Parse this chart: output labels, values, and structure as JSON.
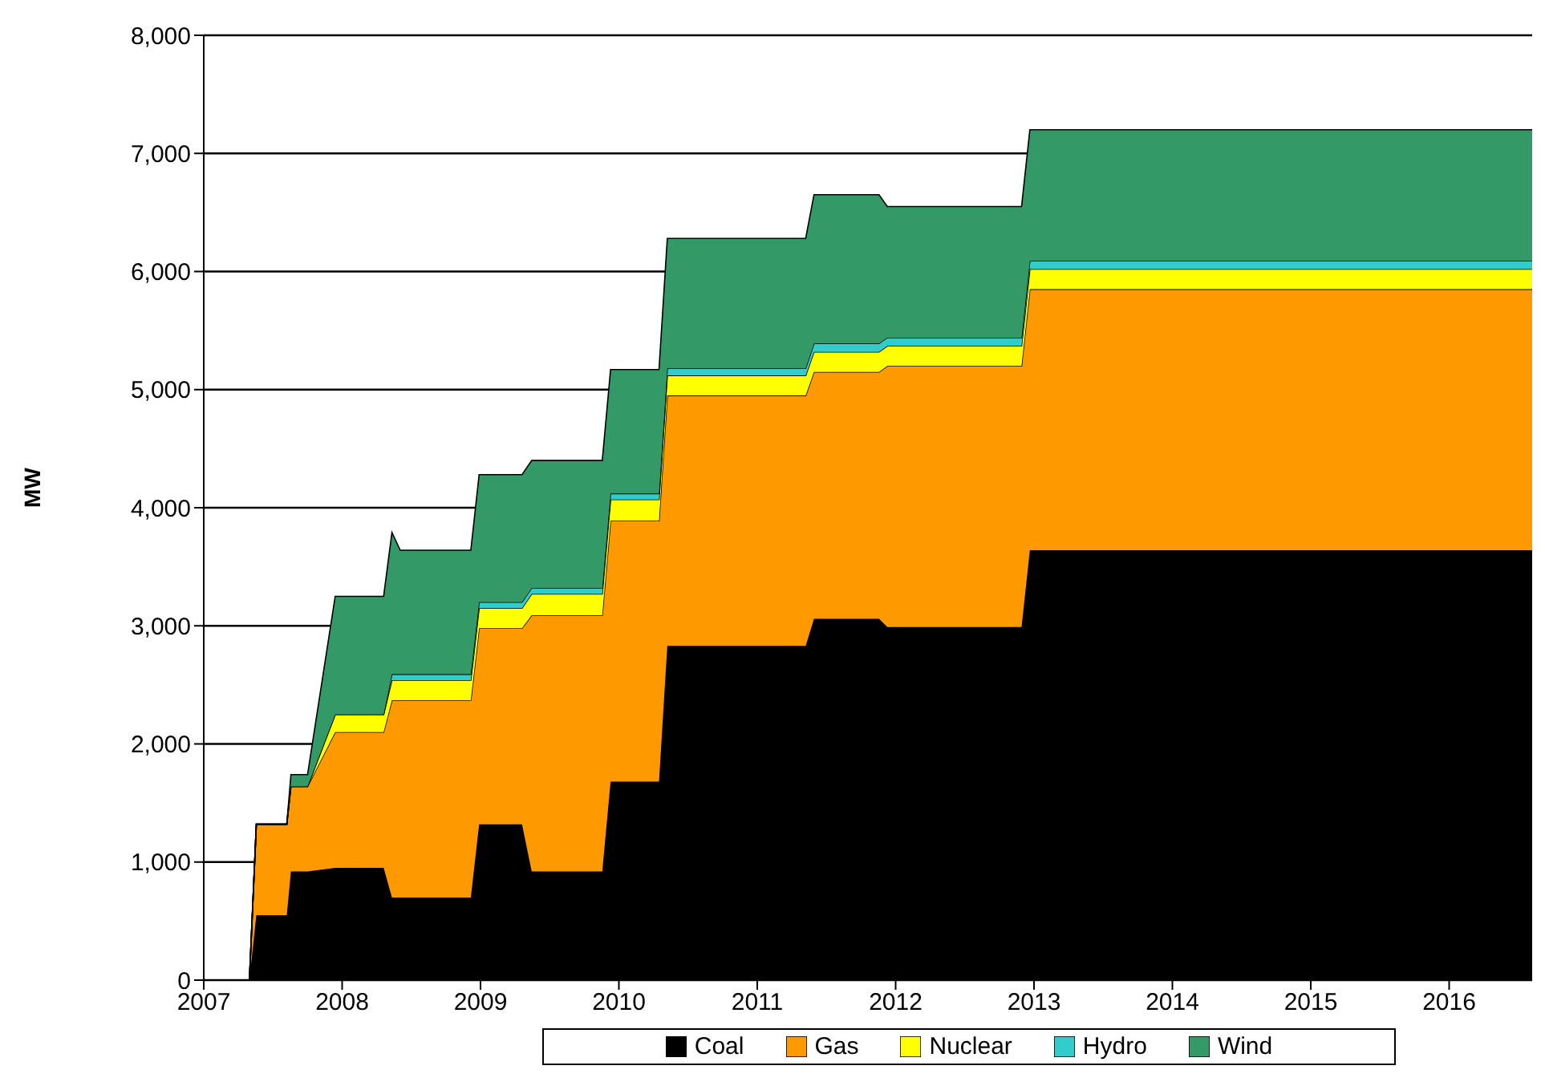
{
  "chart_data": {
    "type": "area",
    "stacked": true,
    "ylabel": "MW",
    "x": [
      2007,
      2007.33,
      2007.38,
      2007.6,
      2007.63,
      2007.75,
      2007.95,
      2008.3,
      2008.36,
      2008.42,
      2008.93,
      2008.99,
      2009.3,
      2009.37,
      2009.88,
      2009.94,
      2010.29,
      2010.35,
      2011.35,
      2011.41,
      2011.88,
      2011.94,
      2012.91,
      2012.97,
      2016.6
    ],
    "series": [
      {
        "name": "Coal",
        "color": "#000000",
        "values": [
          0,
          0,
          550,
          550,
          920,
          920,
          950,
          950,
          700,
          700,
          700,
          1320,
          1320,
          920,
          920,
          1680,
          1680,
          2830,
          2830,
          3060,
          3060,
          2990,
          2990,
          3640,
          3640
        ]
      },
      {
        "name": "Gas",
        "color": "#ff9900",
        "values": [
          0,
          0,
          770,
          770,
          720,
          720,
          1150,
          1150,
          1670,
          1670,
          1670,
          1660,
          1660,
          2170,
          2170,
          2210,
          2210,
          2120,
          2120,
          2090,
          2090,
          2210,
          2210,
          2210,
          2210
        ]
      },
      {
        "name": "Nuclear",
        "color": "#ffff00",
        "values": [
          0,
          0,
          0,
          0,
          0,
          0,
          150,
          150,
          170,
          170,
          170,
          170,
          170,
          180,
          180,
          180,
          180,
          170,
          170,
          170,
          170,
          170,
          170,
          170,
          170
        ]
      },
      {
        "name": "Hydro",
        "color": "#33cccc",
        "values": [
          0,
          0,
          0,
          0,
          0,
          0,
          0,
          0,
          50,
          50,
          50,
          50,
          50,
          50,
          50,
          50,
          50,
          60,
          60,
          70,
          70,
          70,
          70,
          70,
          70
        ]
      },
      {
        "name": "Wind",
        "color": "#339966",
        "values": [
          0,
          0,
          0,
          0,
          100,
          100,
          1000,
          1000,
          1200,
          1050,
          1050,
          1080,
          1080,
          1080,
          1080,
          1050,
          1050,
          1100,
          1100,
          1260,
          1260,
          1110,
          1110,
          1110,
          1110
        ]
      }
    ],
    "xlim": [
      2007,
      2016.6
    ],
    "xticks": [
      2007,
      2008,
      2009,
      2010,
      2011,
      2012,
      2013,
      2014,
      2015,
      2016
    ],
    "ylim": [
      0,
      8000
    ],
    "yticks": [
      0,
      {
        "value": 1000,
        "label": "1,000"
      },
      {
        "value": 2000,
        "label": "2,000"
      },
      {
        "value": 3000,
        "label": "3,000"
      },
      {
        "value": 4000,
        "label": "4,000"
      },
      {
        "value": 5000,
        "label": "5,000"
      },
      {
        "value": 6000,
        "label": "6,000"
      },
      {
        "value": 7000,
        "label": "7,000"
      },
      {
        "value": 8000,
        "label": "8,000"
      }
    ],
    "grid": "y",
    "legend": "bottom"
  }
}
